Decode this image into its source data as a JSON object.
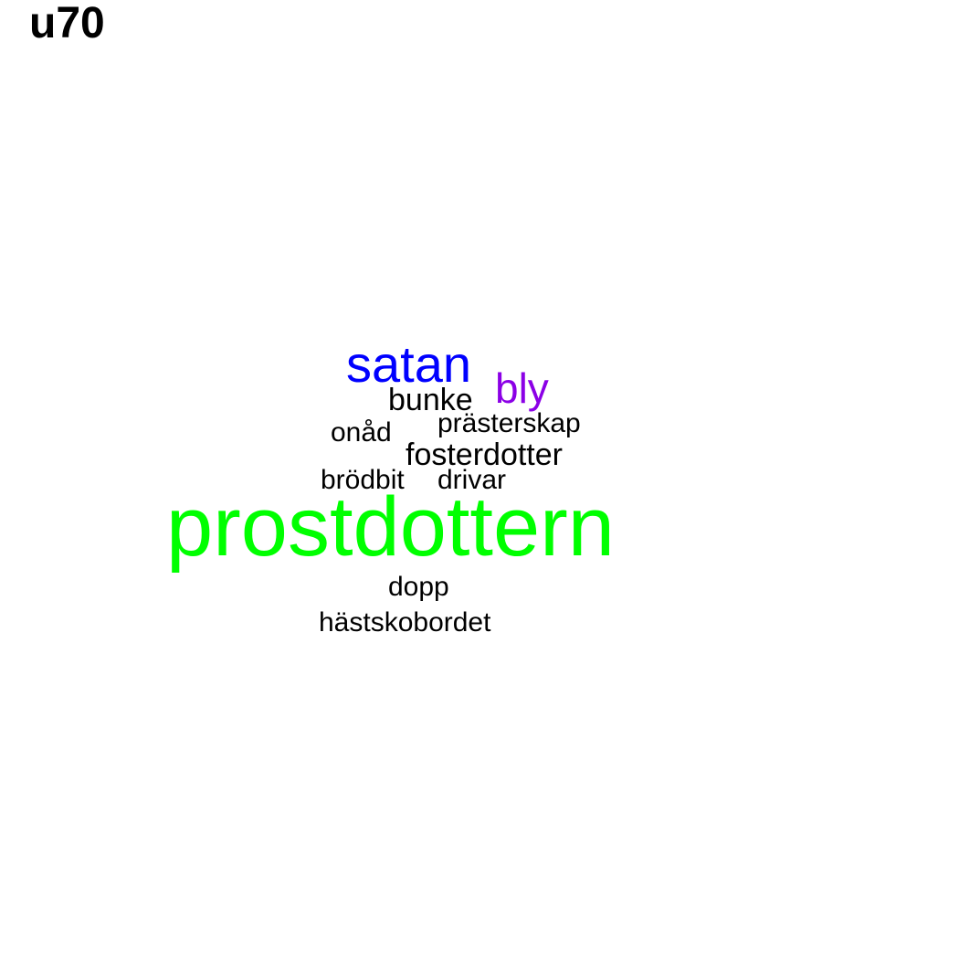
{
  "title": "u70",
  "words": [
    {
      "text": "satan",
      "color": "#0000ff"
    },
    {
      "text": "bly",
      "color": "#8b00e6"
    },
    {
      "text": "bunke",
      "color": "#000000"
    },
    {
      "text": "prästerskap",
      "color": "#000000"
    },
    {
      "text": "onåd",
      "color": "#000000"
    },
    {
      "text": "fosterdotter",
      "color": "#000000"
    },
    {
      "text": "brödbit",
      "color": "#000000"
    },
    {
      "text": "drivar",
      "color": "#000000"
    },
    {
      "text": "prostdottern",
      "color": "#00ff00"
    },
    {
      "text": "dopp",
      "color": "#000000"
    },
    {
      "text": "hästskobordet",
      "color": "#000000"
    }
  ]
}
